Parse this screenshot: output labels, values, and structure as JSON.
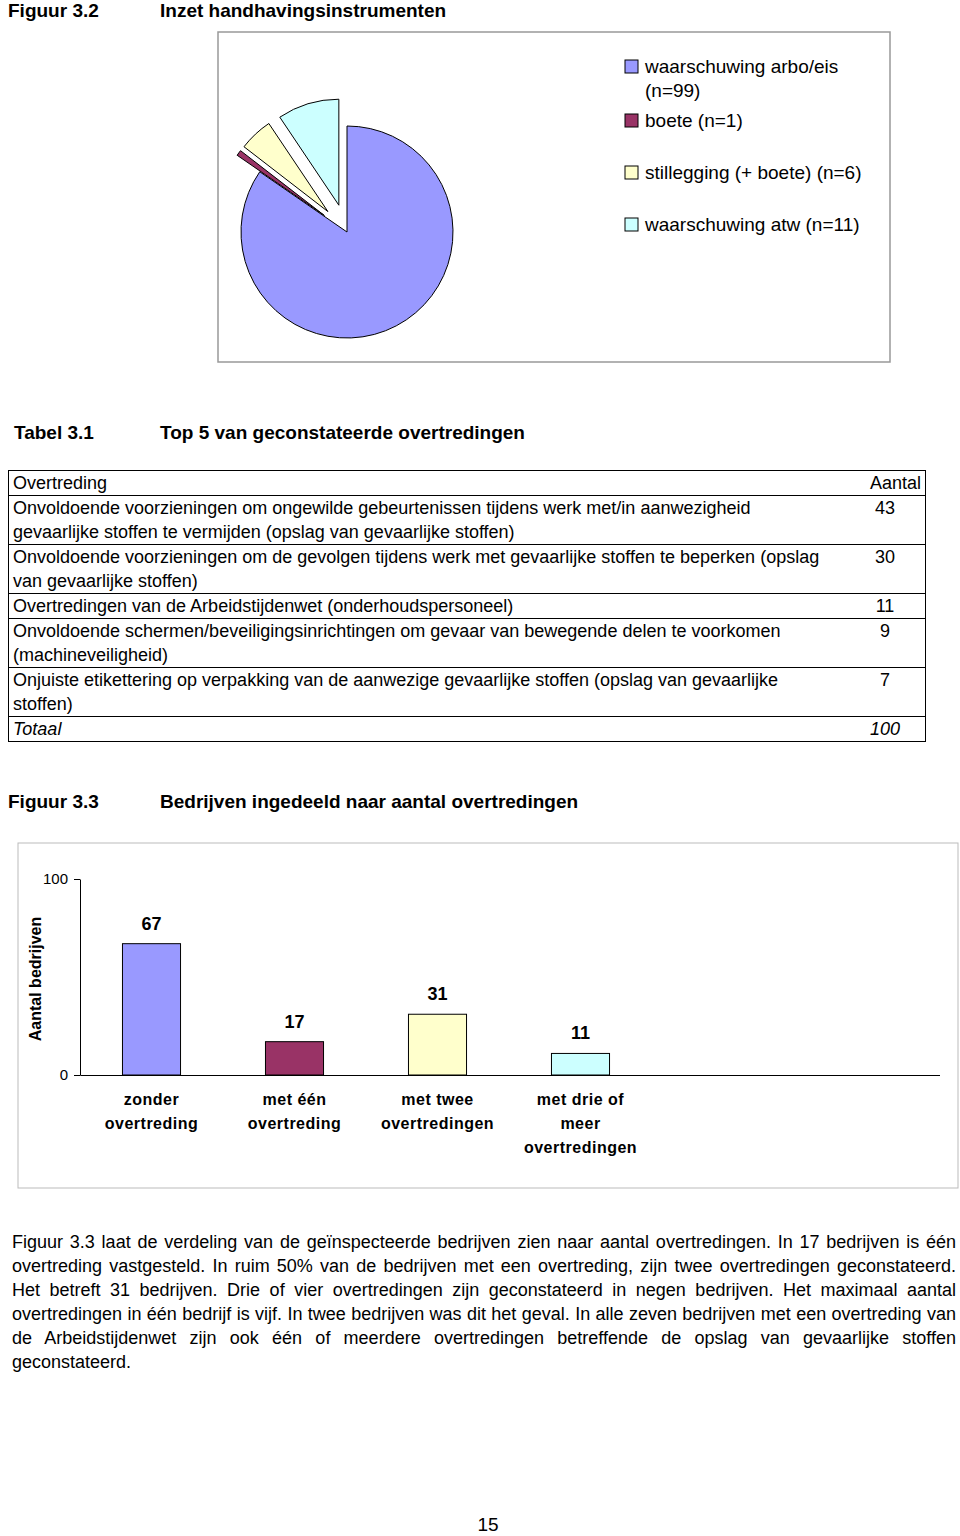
{
  "chart_data": [
    {
      "type": "pie",
      "title": "Inzet handhavingsinstrumenten",
      "categories": [
        "waarschuwing arbo/eis (n=99)",
        "boete (n=1)",
        "stillegging (+ boete) (n=6)",
        "waarschuwing atw (n=11)"
      ],
      "values": [
        99,
        1,
        6,
        11
      ],
      "colors": [
        "#9999ff",
        "#993366",
        "#ffffcc",
        "#ccffff"
      ],
      "legend": "right"
    },
    {
      "type": "bar",
      "title": "Bedrijven ingedeeld naar aantal overtredingen",
      "ylabel": "Aantal bedrijven",
      "categories": [
        "zonder overtreding",
        "met één overtreding",
        "met twee overtredingen",
        "met drie of meer overtredingen"
      ],
      "values": [
        67,
        17,
        31,
        11
      ],
      "colors": [
        "#9999ff",
        "#993366",
        "#ffffcc",
        "#ccffff"
      ],
      "ylim": [
        0,
        100
      ],
      "yticks": [
        0,
        100
      ],
      "data_labels": true
    }
  ],
  "page": {
    "figure_labels": [
      "Figuur 3.2",
      "Figuur 3.3"
    ],
    "table_label": "Tabel 3.1",
    "table_title": "Top 5 van geconstateerde overtredingen",
    "table": {
      "header": [
        "Overtreding",
        "Aantal"
      ],
      "rows": [
        [
          "Onvoldoende voorzieningen om ongewilde gebeurtenissen tijdens werk met/in aanwezigheid gevaarlijke stoffen te vermijden (opslag van gevaarlijke stoffen)",
          43
        ],
        [
          "Onvoldoende voorzieningen om de gevolgen tijdens werk met gevaarlijke stoffen te beperken (opslag van gevaarlijke stoffen)",
          30
        ],
        [
          "Overtredingen van de Arbeidstijdenwet (onderhoudspersoneel)",
          11
        ],
        [
          "Onvoldoende schermen/beveiligingsinrichtingen om gevaar van bewegende delen te voorkomen (machineveiligheid)",
          9
        ],
        [
          "Onjuiste etikettering op verpakking van de aanwezige gevaarlijke stoffen (opslag van gevaarlijke stoffen)",
          7
        ]
      ],
      "total": [
        "Totaal",
        100
      ]
    },
    "paragraph": "Figuur 3.3 laat de verdeling van de geïnspecteerde bedrijven zien naar aantal overtredingen. In 17 bedrijven is één overtreding vastgesteld. In ruim 50% van de bedrijven met een overtreding, zijn twee overtredingen geconstateerd. Het betreft 31 bedrijven. Drie of vier overtredingen zijn geconstateerd in negen bedrijven. Het maximaal aantal overtredingen in één bedrijf is vijf. In twee bedrijven was dit het geval. In alle zeven bedrijven met een overtreding van de Arbeidstijdenwet zijn ook één of meerdere overtredingen betreffende de opslag van gevaarlijke stoffen geconstateerd.",
    "page_number": "15"
  }
}
